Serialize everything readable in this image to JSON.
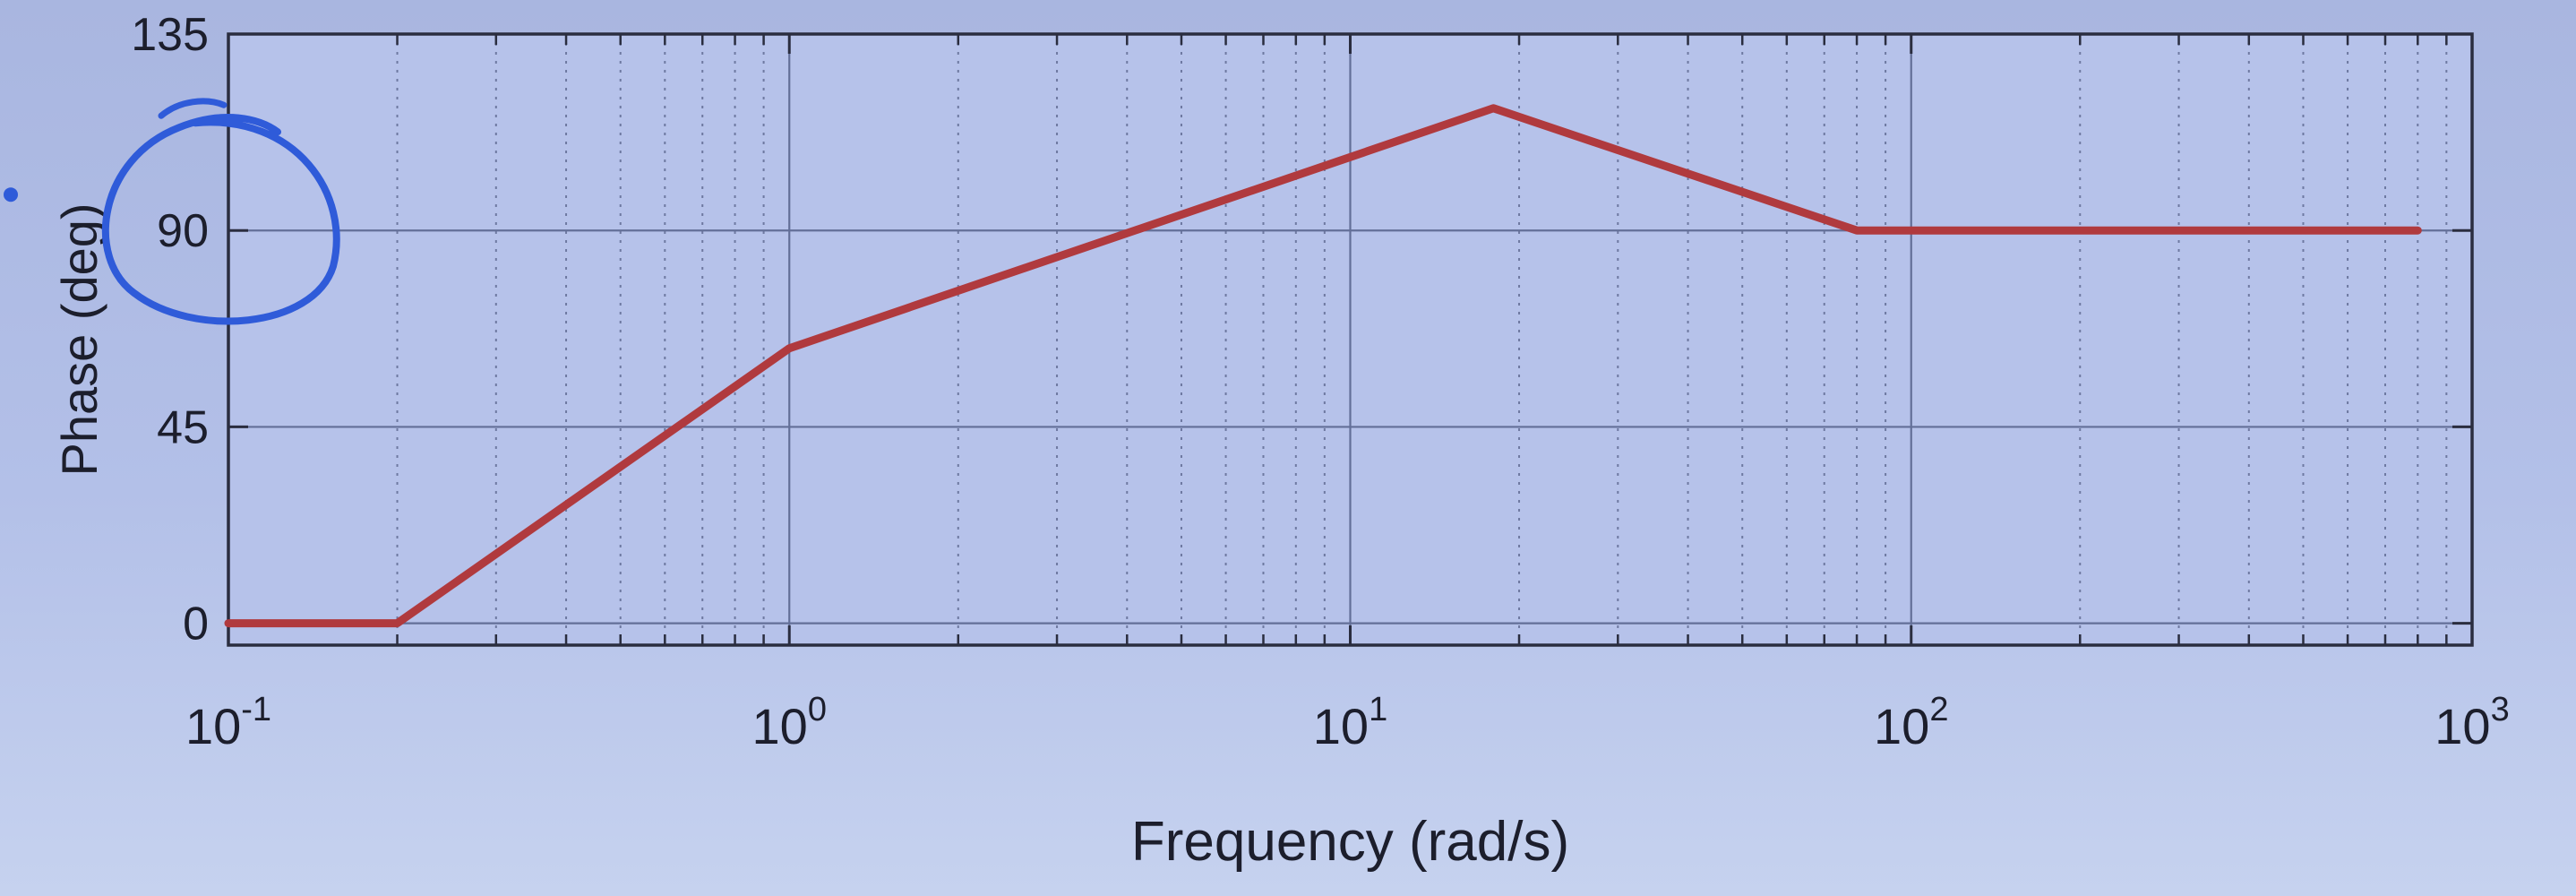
{
  "chart_data": {
    "type": "line",
    "title": "",
    "xlabel": "Frequency (rad/s)",
    "ylabel": "Phase (deg)",
    "x_scale": "log",
    "xlim": [
      0.1,
      1000
    ],
    "ylim": [
      -5,
      135
    ],
    "x_ticks": [
      {
        "value": 0.1,
        "base": "10",
        "exp": "-1"
      },
      {
        "value": 1,
        "base": "10",
        "exp": "0"
      },
      {
        "value": 10,
        "base": "10",
        "exp": "1"
      },
      {
        "value": 100,
        "base": "10",
        "exp": "2"
      },
      {
        "value": 1000,
        "base": "10",
        "exp": "3"
      }
    ],
    "y_ticks": [
      {
        "value": 0,
        "label": "0"
      },
      {
        "value": 45,
        "label": "45"
      },
      {
        "value": 90,
        "label": "90"
      },
      {
        "value": 135,
        "label": "135"
      }
    ],
    "grid": true,
    "series": [
      {
        "color": "#b03a3e",
        "points": [
          {
            "x": 0.1,
            "y": 0
          },
          {
            "x": 0.2,
            "y": 0
          },
          {
            "x": 1.0,
            "y": 63
          },
          {
            "x": 18,
            "y": 118
          },
          {
            "x": 80,
            "y": 90
          },
          {
            "x": 800,
            "y": 90
          }
        ]
      }
    ],
    "annotations": [
      {
        "kind": "hand-drawn circle",
        "around": "y tick 90",
        "color": "#2f5bd9"
      }
    ]
  }
}
